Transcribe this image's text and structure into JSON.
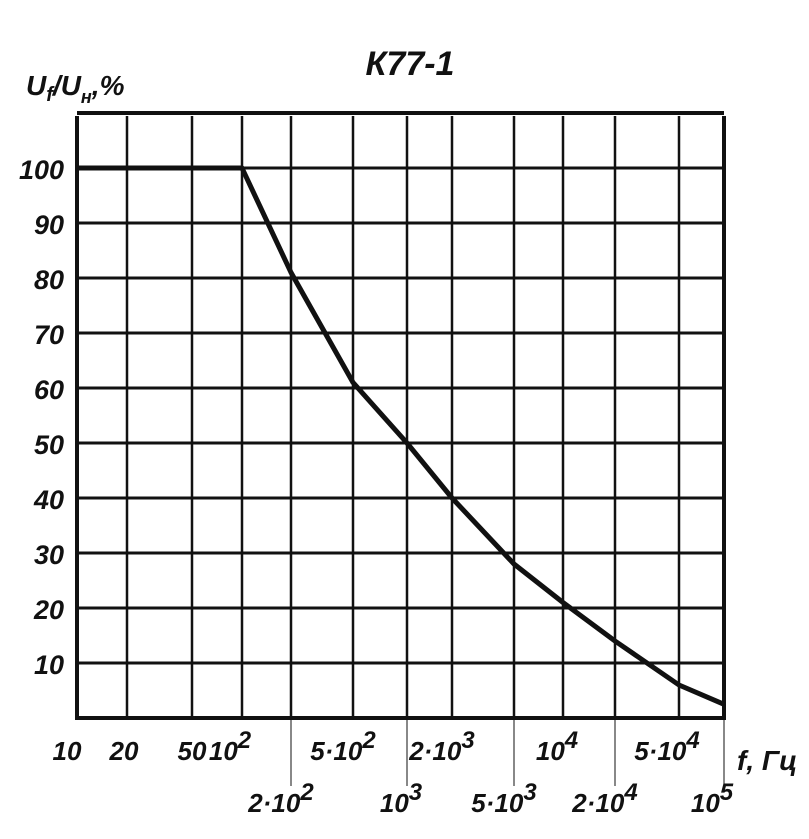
{
  "chart_data": {
    "type": "line",
    "title": "К77-1",
    "ylabel": "Uf/Uн,%",
    "ylabel_parts": {
      "main1": "U",
      "sub1": "f",
      "sep": "/",
      "main2": "U",
      "sub2": "н",
      "unit": ",%"
    },
    "xlabel": "f, Гц",
    "xscale": "log",
    "ylim": [
      0,
      110
    ],
    "grid": true,
    "x_ticks": [
      {
        "value": 10,
        "label": "10",
        "row": 1
      },
      {
        "value": 20,
        "label": "20",
        "row": 1
      },
      {
        "value": 50,
        "label": "50",
        "row": 1
      },
      {
        "value": 100,
        "label": "10",
        "exp": "2",
        "row": 1
      },
      {
        "value": 200,
        "label": "2·10",
        "exp": "2",
        "row": 2
      },
      {
        "value": 500,
        "label": "5·10",
        "exp": "2",
        "row": 1
      },
      {
        "value": 1000,
        "label": "10",
        "exp": "3",
        "row": 2
      },
      {
        "value": 2000,
        "label": "2·10",
        "exp": "3",
        "row": 1
      },
      {
        "value": 5000,
        "label": "5·10",
        "exp": "3",
        "row": 2
      },
      {
        "value": 10000,
        "label": "10",
        "exp": "4",
        "row": 1
      },
      {
        "value": 20000,
        "label": "2·10",
        "exp": "4",
        "row": 2
      },
      {
        "value": 50000,
        "label": "5·10",
        "exp": "4",
        "row": 1
      },
      {
        "value": 100000,
        "label": "10",
        "exp": "5",
        "row": 2
      }
    ],
    "y_ticks": [
      10,
      20,
      30,
      40,
      50,
      60,
      70,
      80,
      90,
      100
    ],
    "series": [
      {
        "name": "К77-1",
        "x": [
          10,
          20,
          50,
          100,
          200,
          500,
          1000,
          2000,
          5000,
          10000,
          20000,
          50000,
          100000
        ],
        "y": [
          100,
          100,
          100,
          100,
          81,
          61,
          50,
          40,
          28,
          21,
          14,
          6,
          2.5
        ]
      }
    ]
  }
}
